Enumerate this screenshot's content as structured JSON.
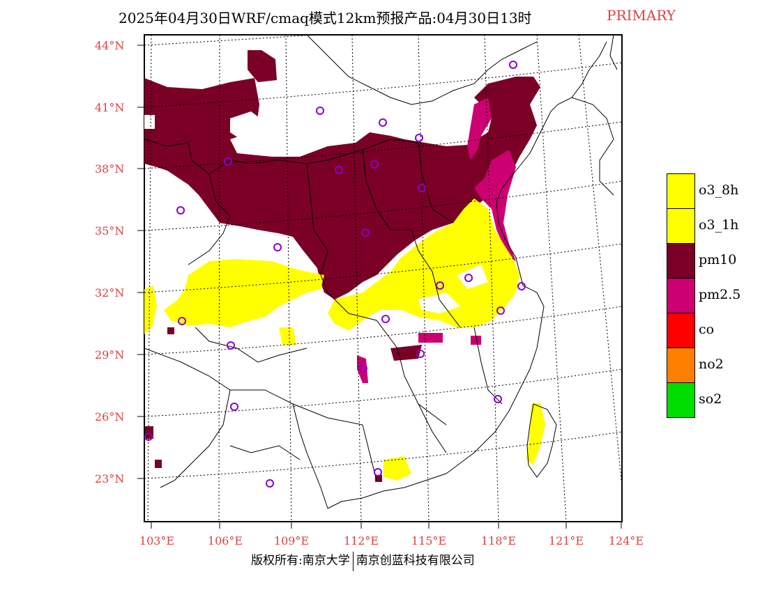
{
  "title": {
    "main": "2025年04月30日WRF/cmaq模式12km预报产品:04月30日13时",
    "tag": "PRIMARY",
    "tag_color": "#e04040"
  },
  "map": {
    "lat_labels": [
      "44°N",
      "41°N",
      "38°N",
      "35°N",
      "32°N",
      "29°N",
      "26°N",
      "23°N"
    ],
    "lon_labels": [
      "103°E",
      "106°E",
      "109°E",
      "112°E",
      "115°E",
      "118°E",
      "121°E",
      "124°E"
    ],
    "colors": {
      "pm10": "#7a0026",
      "pm2_5": "#cc0070",
      "o3": "#ffff00",
      "station_marker": "#8a00cc"
    },
    "stations_count_visible": 24
  },
  "legend": {
    "items": [
      {
        "label": "o3_8h",
        "color": "#ffff00"
      },
      {
        "label": "o3_1h",
        "color": "#ffff00"
      },
      {
        "label": "pm10",
        "color": "#7a0026"
      },
      {
        "label": "pm2.5",
        "color": "#cc0070"
      },
      {
        "label": "co",
        "color": "#ff0000"
      },
      {
        "label": "no2",
        "color": "#ff8000"
      },
      {
        "label": "so2",
        "color": "#00dd00"
      }
    ]
  },
  "footer": {
    "left": "版权所有:南京大学",
    "right": "南京创蓝科技有限公司"
  }
}
